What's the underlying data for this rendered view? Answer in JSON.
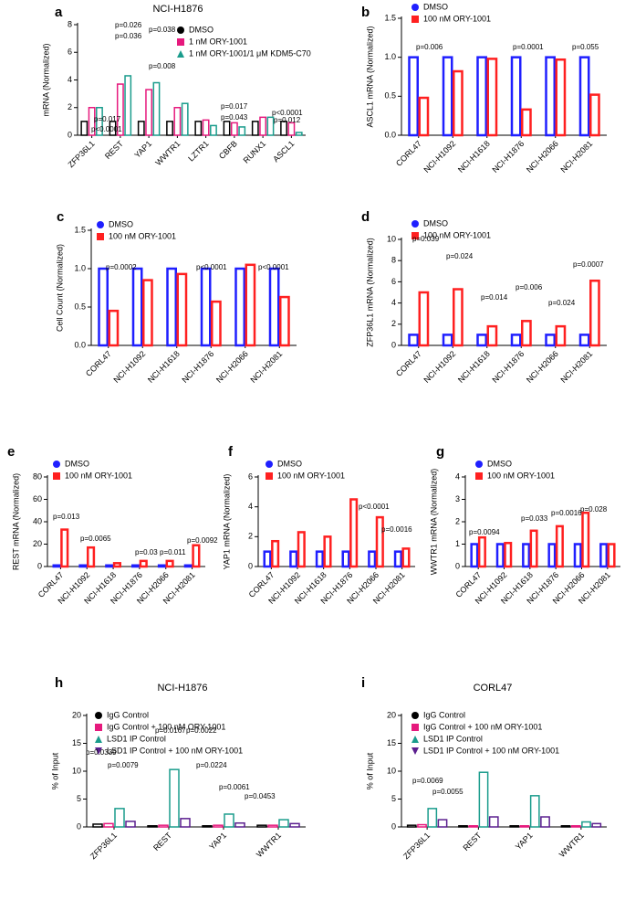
{
  "chart_data": [
    {
      "type": "bar",
      "panel": "a",
      "title": "NCI-H1876",
      "ylabel": "mRNA (Normalized)",
      "categories": [
        "ZFP36L1",
        "REST",
        "YAP1",
        "WWTR1",
        "LZTR1",
        "CBFB",
        "RUNX1",
        "ASCL1"
      ],
      "series": [
        {
          "name": "DMSO",
          "color": "#000000",
          "marker": "circle",
          "values": [
            1,
            1,
            1,
            1,
            1,
            1,
            1,
            1
          ]
        },
        {
          "name": "1 nM ORY-1001",
          "color": "#e6197d",
          "marker": "square",
          "values": [
            2.0,
            3.7,
            3.3,
            2.0,
            1.1,
            0.9,
            1.3,
            0.9
          ]
        },
        {
          "name": "1 nM ORY-1001/1 μM KDM5-C70",
          "color": "#1a9c8c",
          "marker": "triangle",
          "values": [
            2.0,
            4.3,
            3.8,
            2.3,
            0.7,
            0.6,
            1.3,
            0.2
          ]
        }
      ],
      "ylim": [
        0,
        8
      ],
      "yticks": [
        0,
        2,
        4,
        6,
        8
      ],
      "annotations": [
        "p=0.017",
        "p<0.0001",
        "p=0.036",
        "p=0.026",
        "p=0.008",
        "p=0.038",
        "p=0.017",
        "p=0.043",
        "p<0.0001",
        "p=0.012"
      ]
    },
    {
      "type": "bar",
      "panel": "b",
      "ylabel": "ASCL1 mRNA (Normalized)",
      "categories": [
        "CORL47",
        "NCI-H1092",
        "NCI-H1618",
        "NCI-H1876",
        "NCI-H2066",
        "NCI-H2081"
      ],
      "series": [
        {
          "name": "DMSO",
          "color": "#1f1fff",
          "marker": "circle",
          "values": [
            1,
            1,
            1,
            1,
            1,
            1
          ]
        },
        {
          "name": "100 nM ORY-1001",
          "color": "#ff2020",
          "marker": "square",
          "values": [
            0.48,
            0.82,
            0.98,
            0.33,
            0.97,
            0.52
          ]
        }
      ],
      "ylim": [
        0,
        1.5
      ],
      "yticks": [
        {
          "value": 0,
          "label": "0.0"
        },
        {
          "value": 0.5,
          "label": "0.5"
        },
        {
          "value": 1,
          "label": "1.0"
        },
        {
          "value": 1.5,
          "label": "1.5"
        }
      ],
      "annotations": [
        "p=0.006",
        "p=0.0001",
        "p=0.055"
      ]
    },
    {
      "type": "bar",
      "panel": "c",
      "ylabel": "Cell Count (Normalized)",
      "categories": [
        "CORL47",
        "NCI-H1092",
        "NCI-H1618",
        "NCI-H1876",
        "NCI-H2066",
        "NCI-H2081"
      ],
      "series": [
        {
          "name": "DMSO",
          "color": "#1f1fff",
          "marker": "circle",
          "values": [
            1,
            1,
            1,
            1,
            1,
            1
          ]
        },
        {
          "name": "100 nM ORY-1001",
          "color": "#ff2020",
          "marker": "square",
          "values": [
            0.45,
            0.85,
            0.93,
            0.57,
            1.05,
            0.63
          ]
        }
      ],
      "ylim": [
        0,
        1.5
      ],
      "yticks": [
        {
          "value": 0,
          "label": "0.0"
        },
        {
          "value": 0.5,
          "label": "0.5"
        },
        {
          "value": 1,
          "label": "1.0"
        },
        {
          "value": 1.5,
          "label": "1.5"
        }
      ],
      "annotations": [
        "p=0.0002",
        "p<0.0001",
        "p<0.0001"
      ]
    },
    {
      "type": "bar",
      "panel": "d",
      "ylabel": "ZFP36L1 mRNA (Normalized)",
      "categories": [
        "CORL47",
        "NCI-H1092",
        "NCI-H1618",
        "NCI-H1876",
        "NCI-H2066",
        "NCI-H2081"
      ],
      "series": [
        {
          "name": "DMSO",
          "color": "#1f1fff",
          "marker": "circle",
          "values": [
            1,
            1,
            1,
            1,
            1,
            1
          ]
        },
        {
          "name": "100 nM ORY-1001",
          "color": "#ff2020",
          "marker": "square",
          "values": [
            5.0,
            5.3,
            1.8,
            2.3,
            1.8,
            6.1
          ]
        }
      ],
      "ylim": [
        0,
        10
      ],
      "yticks": [
        0,
        2,
        4,
        6,
        8,
        10
      ],
      "annotations": [
        "p=0.039",
        "p=0.024",
        "p=0.014",
        "p=0.006",
        "p=0.024",
        "p=0.0007"
      ]
    },
    {
      "type": "bar",
      "panel": "e",
      "ylabel": "REST mRNA (Normalized)",
      "categories": [
        "CORL47",
        "NCI-H1092",
        "NCI-H1618",
        "NCI-H1876",
        "NCI-H2066",
        "NCI-H2081"
      ],
      "series": [
        {
          "name": "DMSO",
          "color": "#1f1fff",
          "marker": "circle",
          "values": [
            1,
            1,
            1,
            1,
            1,
            1
          ]
        },
        {
          "name": "100 nM ORY-1001",
          "color": "#ff2020",
          "marker": "square",
          "values": [
            33,
            17,
            3,
            5,
            5,
            19
          ]
        }
      ],
      "ylim": [
        0,
        80
      ],
      "yticks": [
        0,
        20,
        40,
        60,
        80
      ],
      "annotations": [
        "p=0.013",
        "p=0.0065",
        "p=0.03",
        "p=0.011",
        "p=0.0092"
      ]
    },
    {
      "type": "bar",
      "panel": "f",
      "ylabel": "YAP1 mRNA (Normalized)",
      "categories": [
        "CORL47",
        "NCI-H1092",
        "NCI-H1618",
        "NCI-H1876",
        "NCI-H2066",
        "NCI-H2081"
      ],
      "series": [
        {
          "name": "DMSO",
          "color": "#1f1fff",
          "marker": "circle",
          "values": [
            1,
            1,
            1,
            1,
            1,
            1
          ]
        },
        {
          "name": "100 nM ORY-1001",
          "color": "#ff2020",
          "marker": "square",
          "values": [
            1.7,
            2.3,
            2.0,
            4.5,
            3.3,
            1.2
          ]
        }
      ],
      "ylim": [
        0,
        6
      ],
      "yticks": [
        0,
        2,
        4,
        6
      ],
      "annotations": [
        "p<0.0001",
        "p=0.0016"
      ]
    },
    {
      "type": "bar",
      "panel": "g",
      "ylabel": "WWTR1 mRNA (Normalized)",
      "categories": [
        "CORL47",
        "NCI-H1092",
        "NCI-H1618",
        "NCI-H1876",
        "NCI-H2066",
        "NCI-H2081"
      ],
      "series": [
        {
          "name": "DMSO",
          "color": "#1f1fff",
          "marker": "circle",
          "values": [
            1,
            1,
            1,
            1,
            1,
            1
          ]
        },
        {
          "name": "100 nM ORY-1001",
          "color": "#ff2020",
          "marker": "square",
          "values": [
            1.3,
            1.05,
            1.6,
            1.8,
            2.4,
            1.0
          ]
        }
      ],
      "ylim": [
        0,
        4
      ],
      "yticks": [
        0,
        1,
        2,
        3,
        4
      ],
      "annotations": [
        "p=0.0094",
        "p=0.033",
        "p=0.0016",
        "p=0.028"
      ]
    },
    {
      "type": "bar",
      "panel": "h",
      "title": "NCI-H1876",
      "ylabel": "% of Input",
      "categories": [
        "ZFP36L1",
        "REST",
        "YAP1",
        "WWTR1"
      ],
      "series": [
        {
          "name": "IgG Control",
          "color": "#000000",
          "marker": "circle",
          "values": [
            0.5,
            0.2,
            0.2,
            0.3
          ]
        },
        {
          "name": "IgG Control + 100 nM ORY-1001",
          "color": "#e6197d",
          "marker": "square",
          "values": [
            0.6,
            0.3,
            0.3,
            0.3
          ]
        },
        {
          "name": "LSD1 IP Control",
          "color": "#1a9c8c",
          "marker": "triangle",
          "values": [
            3.3,
            10.3,
            2.3,
            1.3
          ]
        },
        {
          "name": "LSD1 IP Control + 100 nM ORY-1001",
          "color": "#5b1f8f",
          "marker": "triangle-down",
          "values": [
            1.0,
            1.5,
            0.7,
            0.6
          ]
        }
      ],
      "ylim": [
        0,
        20
      ],
      "yticks": [
        0,
        5,
        10,
        15,
        20
      ],
      "annotations": [
        "p=0.0339",
        "p=0.0079",
        "p=0.0167",
        "p=0.0022",
        "p=0.0224",
        "p=0.0061",
        "p=0.0453"
      ]
    },
    {
      "type": "bar",
      "panel": "i",
      "title": "CORL47",
      "ylabel": "% of Input",
      "categories": [
        "ZFP36L1",
        "REST",
        "YAP1",
        "WWTR1"
      ],
      "series": [
        {
          "name": "IgG Control",
          "color": "#000000",
          "marker": "circle",
          "values": [
            0.3,
            0.2,
            0.2,
            0.2
          ]
        },
        {
          "name": "IgG Control + 100 nM ORY-1001",
          "color": "#e6197d",
          "marker": "square",
          "values": [
            0.4,
            0.2,
            0.2,
            0.2
          ]
        },
        {
          "name": "LSD1 IP Control",
          "color": "#1a9c8c",
          "marker": "triangle",
          "values": [
            3.3,
            9.8,
            5.6,
            0.9
          ]
        },
        {
          "name": "LSD1 IP Control + 100 nM ORY-1001",
          "color": "#5b1f8f",
          "marker": "triangle-down",
          "values": [
            1.3,
            1.8,
            1.8,
            0.6
          ]
        }
      ],
      "ylim": [
        0,
        20
      ],
      "yticks": [
        0,
        5,
        10,
        15,
        20
      ],
      "annotations": [
        "p=0.0069",
        "p=0.0055"
      ]
    }
  ]
}
